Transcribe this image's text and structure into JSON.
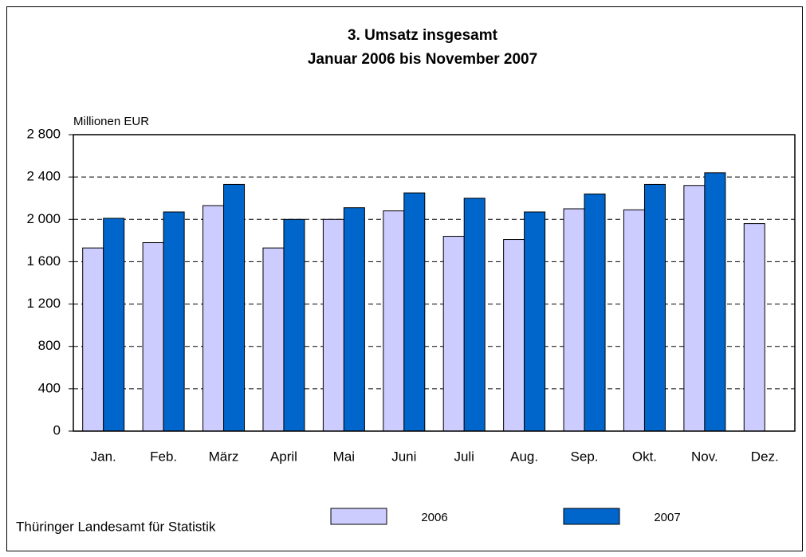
{
  "chart_data": {
    "type": "bar",
    "title": "3. Umsatz insgesamt",
    "subtitle": "Januar 2006 bis November 2007",
    "y_axis_label": "Millionen EUR",
    "source": "Thüringer Landesamt für Statistik",
    "categories": [
      "Jan.",
      "Feb.",
      "März",
      "April",
      "Mai",
      "Juni",
      "Juli",
      "Aug.",
      "Sep.",
      "Okt.",
      "Nov.",
      "Dez."
    ],
    "series": [
      {
        "name": "2006",
        "color": "#ccccff",
        "values": [
          1730,
          1780,
          2130,
          1730,
          2000,
          2080,
          1840,
          1810,
          2100,
          2090,
          2320,
          1960
        ]
      },
      {
        "name": "2007",
        "color": "#0066cc",
        "values": [
          2010,
          2070,
          2330,
          2000,
          2110,
          2250,
          2200,
          2070,
          2240,
          2330,
          2440,
          null
        ]
      }
    ],
    "ylim": [
      0,
      2800
    ],
    "yticks": [
      0,
      400,
      800,
      {
        "value": 1200,
        "label": "1 200"
      },
      {
        "value": 1600,
        "label": "1 600"
      },
      {
        "value": 2000,
        "label": "2 000"
      },
      {
        "value": 2400,
        "label": "2 400"
      },
      {
        "value": 2800,
        "label": "2 800"
      }
    ],
    "grid": true
  }
}
